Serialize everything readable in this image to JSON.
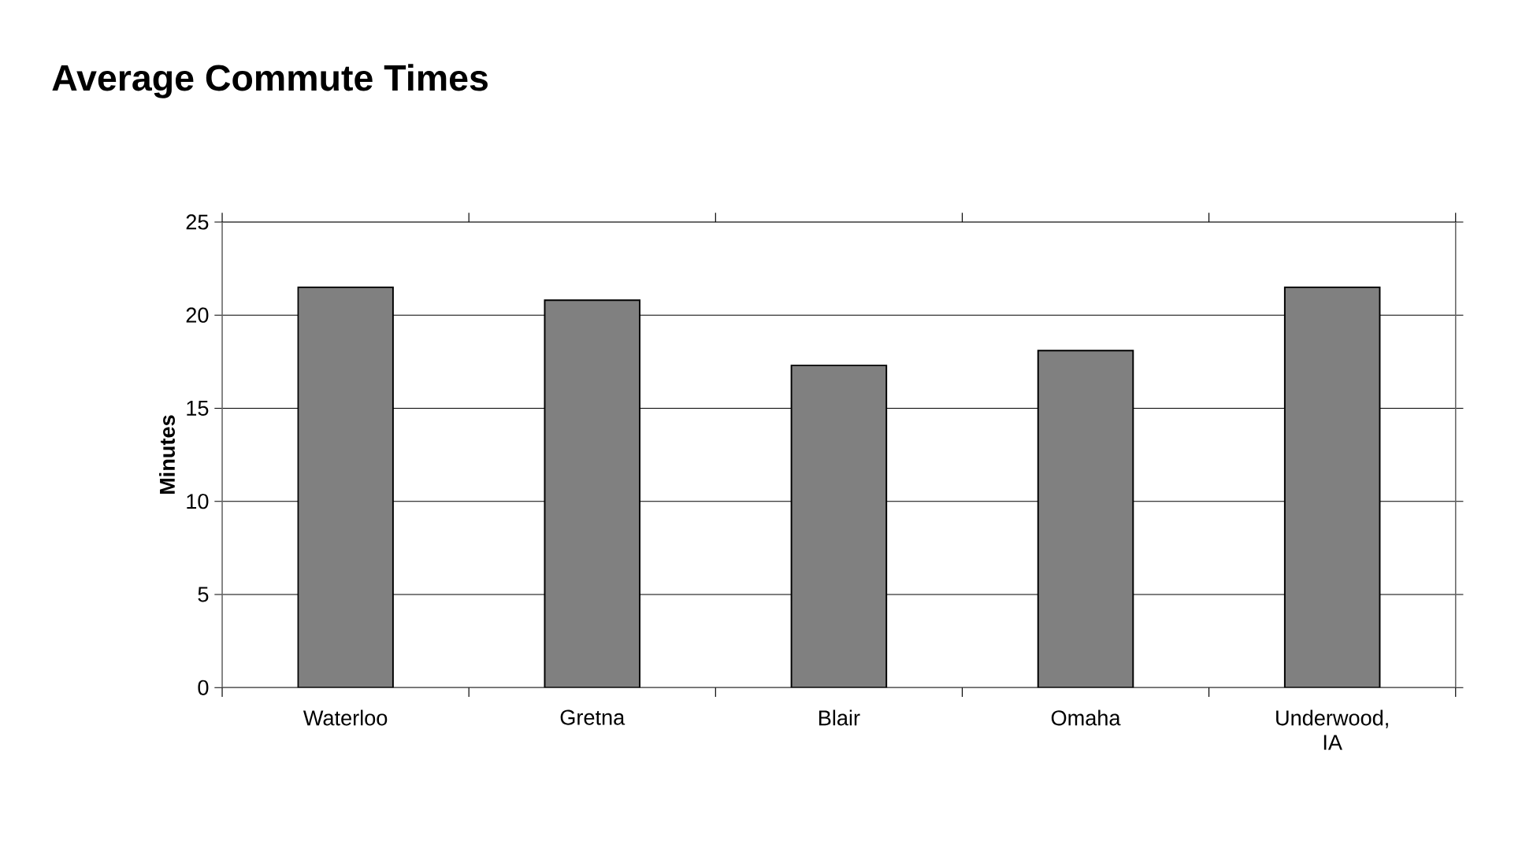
{
  "chart_data": {
    "type": "bar",
    "title": "Average Commute Times",
    "ylabel": "Minutes",
    "categories": [
      "Waterloo",
      "Gretna",
      "Blair",
      "Omaha",
      "Underwood, IA"
    ],
    "values": [
      21.5,
      20.8,
      17.3,
      18.1,
      21.5
    ],
    "color": "#808080",
    "ylim": [
      0,
      25
    ],
    "yticks": [
      0,
      5,
      10,
      15,
      20,
      25
    ],
    "grid": "y"
  }
}
